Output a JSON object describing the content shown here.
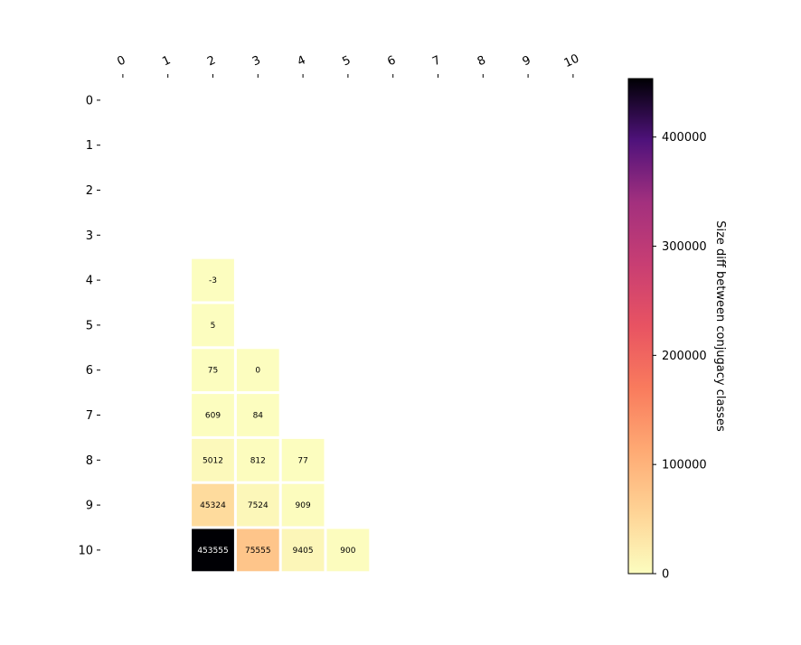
{
  "chart_data": {
    "type": "heatmap",
    "x_ticks": [
      "0",
      "1",
      "2",
      "3",
      "4",
      "5",
      "6",
      "7",
      "8",
      "9",
      "10"
    ],
    "y_ticks": [
      "0",
      "1",
      "2",
      "3",
      "4",
      "5",
      "6",
      "7",
      "8",
      "9",
      "10"
    ],
    "cells": [
      {
        "row": 4,
        "col": 2,
        "value": -3,
        "label": "-3"
      },
      {
        "row": 5,
        "col": 2,
        "value": 5,
        "label": "5"
      },
      {
        "row": 6,
        "col": 2,
        "value": 75,
        "label": "75"
      },
      {
        "row": 6,
        "col": 3,
        "value": 0,
        "label": "0"
      },
      {
        "row": 7,
        "col": 2,
        "value": 609,
        "label": "609"
      },
      {
        "row": 7,
        "col": 3,
        "value": 84,
        "label": "84"
      },
      {
        "row": 8,
        "col": 2,
        "value": 5012,
        "label": "5012"
      },
      {
        "row": 8,
        "col": 3,
        "value": 812,
        "label": "812"
      },
      {
        "row": 8,
        "col": 4,
        "value": 77,
        "label": "77"
      },
      {
        "row": 9,
        "col": 2,
        "value": 45324,
        "label": "45324"
      },
      {
        "row": 9,
        "col": 3,
        "value": 7524,
        "label": "7524"
      },
      {
        "row": 9,
        "col": 4,
        "value": 909,
        "label": "909"
      },
      {
        "row": 10,
        "col": 2,
        "value": 453555,
        "label": "453555"
      },
      {
        "row": 10,
        "col": 3,
        "value": 75555,
        "label": "75555"
      },
      {
        "row": 10,
        "col": 4,
        "value": 9405,
        "label": "9405"
      },
      {
        "row": 10,
        "col": 5,
        "value": 900,
        "label": "900"
      }
    ],
    "colormap": "magma_r",
    "colorbar": {
      "label": "Size diff between conjugacy classes",
      "range": [
        0,
        453555
      ],
      "ticks": [
        0,
        100000,
        200000,
        300000,
        400000
      ],
      "tick_labels": [
        "0",
        "100000",
        "200000",
        "300000",
        "400000"
      ]
    },
    "x_axis_position": "top",
    "x_tick_rotation": "slanted",
    "grid": false
  }
}
